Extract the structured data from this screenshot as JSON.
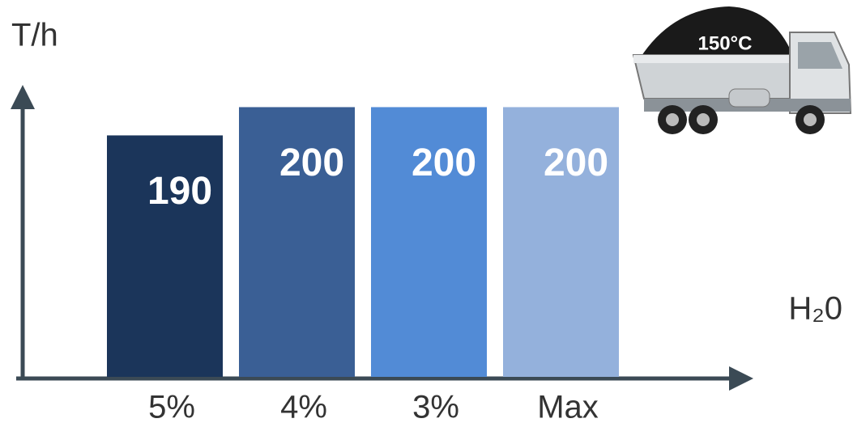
{
  "chart_data": {
    "type": "bar",
    "y_label": "T/h",
    "x_label": "H₂0",
    "annotation": "150°C",
    "categories": [
      "5%",
      "4%",
      "3%",
      "Max"
    ],
    "values": [
      190,
      200,
      200,
      200
    ],
    "colors": [
      "#1b355a",
      "#3a5f95",
      "#528bd6",
      "#94b1dc"
    ],
    "ylim": [
      104,
      205
    ]
  }
}
